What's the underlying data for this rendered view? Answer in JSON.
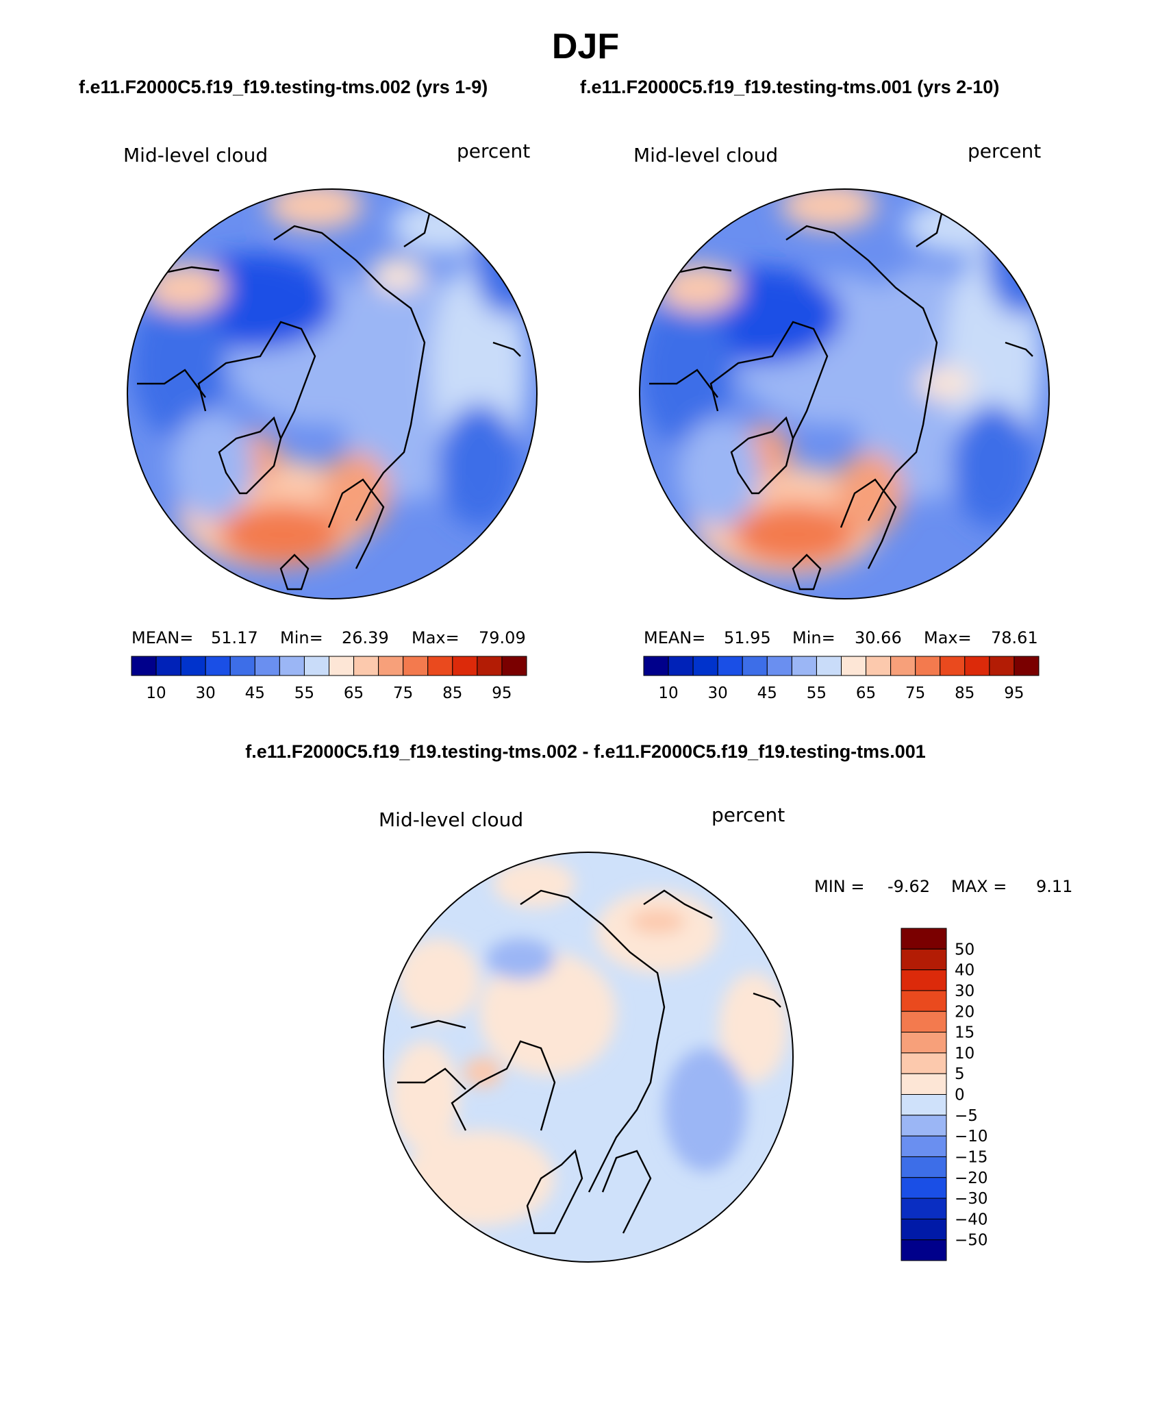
{
  "title": "DJF",
  "case_left": "f.e11.F2000C5.f19_f19.testing-tms.002 (yrs 1-9)",
  "case_right": "f.e11.F2000C5.f19_f19.testing-tms.001 (yrs 2-10)",
  "diff_title": "f.e11.F2000C5.f19_f19.testing-tms.002 - f.e11.F2000C5.f19_f19.testing-tms.001",
  "colors": {
    "mean_scale": [
      "#00008b",
      "#0022b8",
      "#0033cc",
      "#1a4fe6",
      "#3d6ee8",
      "#6a8ff0",
      "#9bb6f5",
      "#c9dcf9",
      "#fde6d6",
      "#fcc9ad",
      "#f7a07a",
      "#f37a4e",
      "#ea4a1e",
      "#dc2a0a",
      "#b31c05",
      "#7a0000"
    ],
    "diff_scale": [
      "#00008b",
      "#001aa8",
      "#0a2ec2",
      "#1a4fe6",
      "#3d6ee8",
      "#6a8ff0",
      "#9bb6f5",
      "#cfe1fa",
      "#fde6d6",
      "#fcc9ad",
      "#f7a07a",
      "#f37a4e",
      "#ea4a1e",
      "#dc2a0a",
      "#b31c05",
      "#7a0000"
    ]
  },
  "chart_data": [
    {
      "type": "heatmap",
      "panel": "left",
      "variable": "Mid-level cloud",
      "units": "percent",
      "stats": {
        "mean_label": "MEAN=",
        "mean": "51.17",
        "min_label": "Min=",
        "min": "26.39",
        "max_label": "Max=",
        "max": "79.09"
      },
      "contour_levels": [
        5,
        10,
        15,
        20,
        25,
        30,
        35,
        40,
        45,
        50,
        55,
        60,
        65,
        70,
        75,
        80,
        85,
        90,
        95
      ],
      "colorbar_tick_labels": [
        "10",
        "30",
        "45",
        "55",
        "65",
        "75",
        "85",
        "95"
      ]
    },
    {
      "type": "heatmap",
      "panel": "right",
      "variable": "Mid-level cloud",
      "units": "percent",
      "stats": {
        "mean_label": "MEAN=",
        "mean": "51.95",
        "min_label": "Min=",
        "min": "30.66",
        "max_label": "Max=",
        "max": "78.61"
      },
      "colorbar_tick_labels": [
        "10",
        "30",
        "45",
        "55",
        "65",
        "75",
        "85",
        "95"
      ]
    },
    {
      "type": "heatmap",
      "panel": "difference",
      "variable": "Mid-level cloud",
      "units": "percent",
      "stats": {
        "min_label": "MIN =",
        "min": "-9.62",
        "max_label": "MAX =",
        "max": "9.11"
      },
      "colorbar_tick_labels": [
        "50",
        "40",
        "30",
        "20",
        "15",
        "10",
        "5",
        "0",
        "−5",
        "−10",
        "−15",
        "−20",
        "−30",
        "−40",
        "−50"
      ]
    }
  ]
}
